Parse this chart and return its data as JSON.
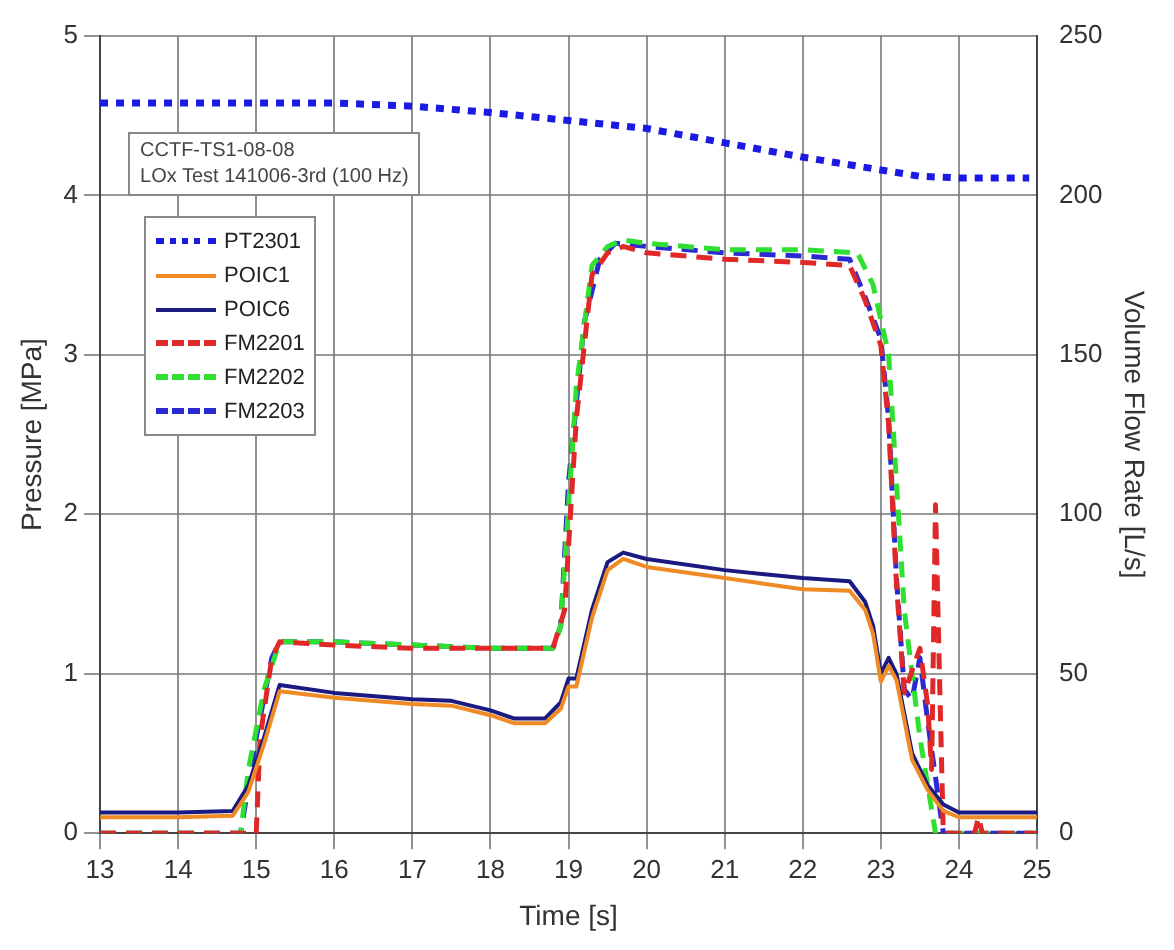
{
  "chart_data": {
    "type": "line",
    "xlabel": "Time [s]",
    "ylabel": "Pressure [MPa]",
    "y2label": "Volume Flow Rate [L/s]",
    "annotations": [
      "CCTF-TS1-08-08\nLOx Test 141006-3rd (100 Hz)"
    ],
    "xlim": [
      13,
      25
    ],
    "xticks": [
      13,
      14,
      15,
      16,
      17,
      18,
      19,
      20,
      21,
      22,
      23,
      24,
      25
    ],
    "ylim": [
      0,
      5
    ],
    "yticks": [
      0,
      1,
      2,
      3,
      4,
      5
    ],
    "y2lim": [
      0,
      250
    ],
    "y2ticks": [
      0,
      50,
      100,
      150,
      200,
      250
    ],
    "grid": true,
    "legend": "top left",
    "marker": "none",
    "series": [
      {
        "name": "PT2301",
        "color": "#1a1ae0",
        "line_style": "dotted",
        "x": [
          13,
          14,
          15,
          16,
          17,
          18,
          19,
          20,
          21,
          22,
          23,
          23.5,
          24,
          24.9
        ],
        "values": [
          4.58,
          4.58,
          4.58,
          4.58,
          4.56,
          4.52,
          4.47,
          4.42,
          4.33,
          4.24,
          4.16,
          4.12,
          4.11,
          4.11
        ]
      },
      {
        "name": "POIC1",
        "color": "#f08a24",
        "line_style": "solid",
        "x": [
          13,
          14,
          14.7,
          14.9,
          15.1,
          15.3,
          16,
          17,
          17.5,
          18,
          18.3,
          18.7,
          18.9,
          19,
          19.1,
          19.3,
          19.5,
          19.7,
          20,
          21,
          22,
          22.6,
          22.8,
          22.9,
          23,
          23.1,
          23.2,
          23.4,
          23.6,
          23.8,
          24,
          25
        ],
        "values": [
          0.1,
          0.1,
          0.11,
          0.26,
          0.56,
          0.89,
          0.85,
          0.81,
          0.8,
          0.74,
          0.69,
          0.69,
          0.78,
          0.92,
          0.92,
          1.35,
          1.65,
          1.72,
          1.67,
          1.6,
          1.53,
          1.52,
          1.4,
          1.25,
          0.95,
          1.05,
          0.96,
          0.46,
          0.27,
          0.14,
          0.1,
          0.1
        ]
      },
      {
        "name": "POIC6",
        "color": "#1a1a80",
        "line_style": "solid",
        "x": [
          13,
          14,
          14.7,
          14.9,
          15.1,
          15.3,
          16,
          17,
          17.5,
          18,
          18.3,
          18.7,
          18.9,
          19,
          19.1,
          19.3,
          19.5,
          19.7,
          20,
          21,
          22,
          22.6,
          22.8,
          22.9,
          23,
          23.1,
          23.2,
          23.4,
          23.6,
          23.8,
          24,
          25
        ],
        "values": [
          0.13,
          0.13,
          0.14,
          0.3,
          0.6,
          0.93,
          0.88,
          0.84,
          0.83,
          0.77,
          0.72,
          0.72,
          0.82,
          0.97,
          0.97,
          1.4,
          1.7,
          1.76,
          1.72,
          1.65,
          1.6,
          1.58,
          1.45,
          1.3,
          1,
          1.1,
          1,
          0.5,
          0.3,
          0.18,
          0.13,
          0.13
        ]
      },
      {
        "name": "FM2201",
        "color": "#e02828",
        "line_style": "dashed",
        "axis": "y2",
        "x": [
          13,
          15,
          15.05,
          15.2,
          15.3,
          16,
          17,
          18,
          18.8,
          18.95,
          19.1,
          19.3,
          19.5,
          19.7,
          20,
          21,
          22,
          22.6,
          22.8,
          23,
          23.1,
          23.2,
          23.3,
          23.5,
          23.6,
          23.65,
          23.7,
          23.75,
          23.8,
          24.2,
          24.25,
          24.3,
          25
        ],
        "values": [
          0,
          0,
          30,
          55,
          60,
          59,
          58,
          58,
          58,
          70,
          130,
          175,
          182,
          184,
          182,
          180,
          179,
          178,
          167,
          153,
          128,
          78,
          44,
          58,
          40,
          20,
          103,
          50,
          0,
          0,
          5,
          0,
          0
        ]
      },
      {
        "name": "FM2202",
        "color": "#30e030",
        "line_style": "dashed",
        "axis": "y2",
        "x": [
          13,
          14.8,
          14.9,
          15.1,
          15.3,
          16,
          17,
          18,
          18.8,
          18.9,
          19.1,
          19.3,
          19.5,
          19.7,
          20,
          21,
          22,
          22.7,
          22.9,
          23.1,
          23.3,
          23.5,
          23.7,
          25
        ],
        "values": [
          0,
          0,
          20,
          45,
          60,
          60,
          59,
          58,
          58,
          65,
          140,
          178,
          184,
          186,
          185,
          183,
          183,
          182,
          172,
          150,
          70,
          30,
          0,
          0
        ]
      },
      {
        "name": "FM2203",
        "color": "#2a2ad0",
        "line_style": "dashed",
        "axis": "y2",
        "x": [
          13,
          14.8,
          14.9,
          15,
          15.2,
          15.3,
          16,
          17,
          18,
          18.8,
          18.9,
          19,
          19.2,
          19.4,
          19.6,
          20,
          21,
          22,
          22.6,
          22.8,
          23,
          23.1,
          23.2,
          23.3,
          23.4,
          23.5,
          23.6,
          23.8,
          25
        ],
        "values": [
          0,
          0,
          15,
          30,
          55,
          60,
          60,
          59,
          58,
          58,
          65,
          110,
          160,
          180,
          185,
          184,
          182,
          181,
          180,
          168,
          155,
          130,
          80,
          45,
          42,
          55,
          35,
          0,
          0
        ]
      }
    ]
  }
}
